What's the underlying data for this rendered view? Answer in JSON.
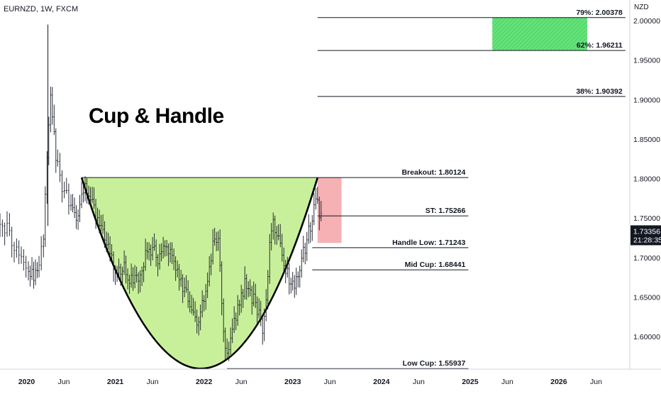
{
  "header": {
    "symbol": "EURNZD, 1W, FXCM"
  },
  "chart_data": {
    "type": "line",
    "title": "Cup & Handle",
    "currency_unit": "NZD",
    "ylim": [
      1.53,
      2.02
    ],
    "y_ticks": [
      "2.00000",
      "1.95000",
      "1.90000",
      "1.85000",
      "1.80000",
      "1.75000",
      "1.70000",
      "1.65000",
      "1.60000"
    ],
    "x_ticks": [
      {
        "label": "2020",
        "t": 2020.0,
        "major": true
      },
      {
        "label": "Jun",
        "t": 2020.42,
        "major": false
      },
      {
        "label": "2021",
        "t": 2021.0,
        "major": true
      },
      {
        "label": "Jun",
        "t": 2021.42,
        "major": false
      },
      {
        "label": "2022",
        "t": 2022.0,
        "major": true
      },
      {
        "label": "Jun",
        "t": 2022.42,
        "major": false
      },
      {
        "label": "2023",
        "t": 2023.0,
        "major": true
      },
      {
        "label": "Jun",
        "t": 2023.42,
        "major": false
      },
      {
        "label": "2024",
        "t": 2024.0,
        "major": true
      },
      {
        "label": "Jun",
        "t": 2024.42,
        "major": false
      },
      {
        "label": "2025",
        "t": 2025.0,
        "major": true
      },
      {
        "label": "Jun",
        "t": 2025.42,
        "major": false
      },
      {
        "label": "2026",
        "t": 2026.0,
        "major": true
      },
      {
        "label": "Jun",
        "t": 2026.42,
        "major": false
      }
    ],
    "levels": [
      {
        "name": "79%",
        "label": "79%: 2.00378",
        "value": 2.00378,
        "t_start": 2023.28,
        "t_end": 2026.75
      },
      {
        "name": "62%",
        "label": "62%: 1.96211",
        "value": 1.96211,
        "t_start": 2023.28,
        "t_end": 2026.75
      },
      {
        "name": "38%",
        "label": "38%: 1.90392",
        "value": 1.90392,
        "t_start": 2023.28,
        "t_end": 2026.75
      },
      {
        "name": "Breakout",
        "label": "Breakout: 1.80124",
        "value": 1.80124,
        "t_start": 2020.62,
        "t_end": 2024.98
      },
      {
        "name": "ST",
        "label": "ST: 1.75266",
        "value": 1.75266,
        "t_start": 2023.28,
        "t_end": 2024.98
      },
      {
        "name": "Handle Low",
        "label": "Handle Low: 1.71243",
        "value": 1.71243,
        "t_start": 2023.22,
        "t_end": 2024.98
      },
      {
        "name": "Mid Cup",
        "label": "Mid Cup: 1.68441",
        "value": 1.68441,
        "t_start": 2023.22,
        "t_end": 2024.98
      },
      {
        "name": "Low Cup",
        "label": "Low Cup: 1.55937",
        "value": 1.55937,
        "t_start": 2022.26,
        "t_end": 2024.98
      }
    ],
    "target_zone": {
      "t_start": 2025.25,
      "t_end": 2026.32,
      "y_top": 2.00378,
      "y_bottom": 1.96211,
      "color": "#4cd964"
    },
    "stop_zone": {
      "t_start": 2023.28,
      "t_end": 2023.55,
      "y_top": 1.80124,
      "y_bottom": 1.71843,
      "color": "#f5a3a8"
    },
    "cup": {
      "left": {
        "t": 2020.62,
        "y": 1.80124
      },
      "bottom": {
        "t": 2021.98,
        "y": 1.55937
      },
      "right": {
        "t": 2023.28,
        "y": 1.80124
      },
      "fill": "#c8f09a",
      "stroke": "#000000"
    },
    "last_price": {
      "value": 1.73356,
      "label": "1.73356",
      "countdown": "21:28:35",
      "color": "#131722"
    },
    "price_series": {
      "t": [
        2019.7,
        2019.78,
        2019.86,
        2019.94,
        2020.02,
        2020.08,
        2020.14,
        2020.19,
        2020.23,
        2020.27,
        2020.31,
        2020.35,
        2020.4,
        2020.45,
        2020.5,
        2020.56,
        2020.62,
        2020.66,
        2020.72,
        2020.78,
        2020.84,
        2020.9,
        2020.96,
        2021.02,
        2021.08,
        2021.14,
        2021.2,
        2021.26,
        2021.32,
        2021.38,
        2021.44,
        2021.5,
        2021.56,
        2021.62,
        2021.68,
        2021.74,
        2021.8,
        2021.86,
        2021.92,
        2021.98,
        2022.04,
        2022.1,
        2022.16,
        2022.22,
        2022.26,
        2022.3,
        2022.36,
        2022.42,
        2022.48,
        2022.54,
        2022.6,
        2022.66,
        2022.7,
        2022.74,
        2022.78,
        2022.84,
        2022.9,
        2022.96,
        2023.02,
        2023.08,
        2023.14,
        2023.2,
        2023.26,
        2023.3,
        2023.34
      ],
      "close": [
        1.752,
        1.735,
        1.718,
        1.7,
        1.685,
        1.672,
        1.688,
        1.73,
        1.83,
        1.905,
        1.85,
        1.815,
        1.79,
        1.775,
        1.76,
        1.748,
        1.772,
        1.795,
        1.77,
        1.752,
        1.735,
        1.715,
        1.7,
        1.682,
        1.69,
        1.675,
        1.668,
        1.68,
        1.695,
        1.712,
        1.705,
        1.7,
        1.718,
        1.712,
        1.69,
        1.672,
        1.65,
        1.625,
        1.615,
        1.64,
        1.668,
        1.712,
        1.725,
        1.612,
        1.575,
        1.592,
        1.625,
        1.655,
        1.668,
        1.65,
        1.632,
        1.612,
        1.64,
        1.718,
        1.75,
        1.72,
        1.69,
        1.672,
        1.665,
        1.69,
        1.712,
        1.742,
        1.768,
        1.76,
        1.734
      ]
    }
  }
}
